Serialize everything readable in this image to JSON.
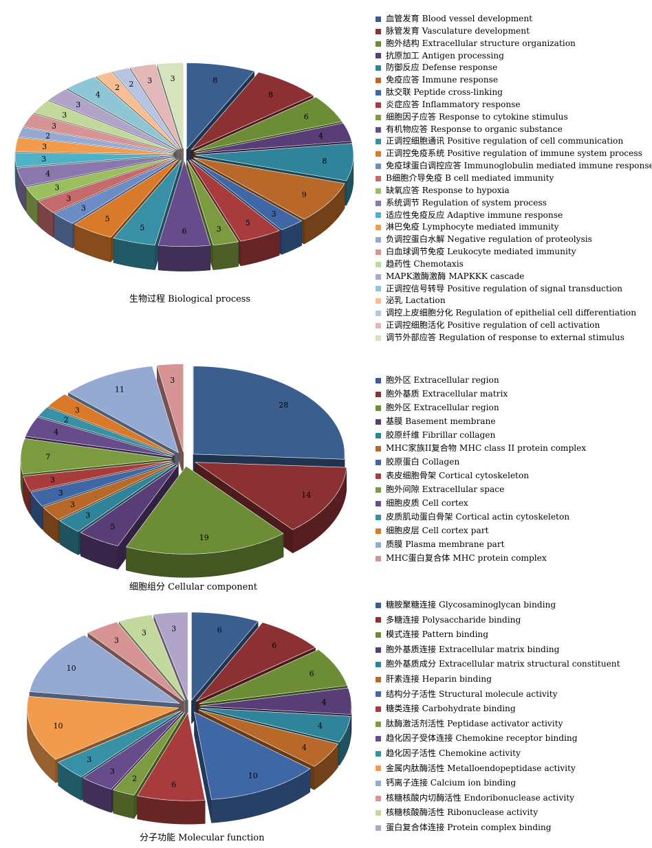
{
  "chart_data": [
    {
      "type": "pie",
      "title": "生物过程 Biological process",
      "categories": [
        "血管发育 Blood vessel development",
        "脉管发育 Vasculature development",
        "胞外结构 Extracellular structure organization",
        "抗原加工 Antigen processing",
        "防御反应 Defense response",
        "免疫应答 Immune response",
        "肽交联 Peptide cross-linking",
        "炎症应答 Inflammatory response",
        "细胞因子应答 Response to cytokine stimulus",
        "有机物应答 Response to organic substance",
        "正调控细胞通讯 Positive regulation of cell communication",
        "正调控免疫系统 Positive regulation of immune system process",
        "免疫球蛋白调控应答 Immunoglobulin mediated immune response",
        "B细胞介导免疫 B cell mediated immunity",
        "缺氧应答 Response to hypoxia",
        "系统调节 Regulation of system process",
        "适应性免疫反应 Adaptive immune response",
        "淋巴免疫 Lymphocyte mediated immunity",
        "负调控蛋白水解 Negative regulation of proteolysis",
        "白血球调节免疫 Leukocyte mediated immunity",
        "趋药性 Chemotaxis",
        "MAPK激酶激酶 MAPKKK cascade",
        "正调控信号转导 Positive regulation of signal transduction",
        "泌乳 Lactation",
        "调控上皮细胞分化 Regulation of epithelial cell differentiation",
        "正调控细胞活化 Positive regulation of cell activation",
        "调节外部应答 Regulation of response to external stimulus"
      ],
      "values": [
        8,
        8,
        6,
        4,
        8,
        9,
        3,
        5,
        3,
        6,
        5,
        5,
        3,
        3,
        3,
        4,
        3,
        3,
        2,
        3,
        3,
        3,
        4,
        2,
        2,
        3,
        3
      ],
      "colors": [
        "#3a5f8f",
        "#8b3133",
        "#6c8c35",
        "#593d76",
        "#30849a",
        "#b8692a",
        "#3f67a5",
        "#a83c3c",
        "#7c9a3f",
        "#674c8c",
        "#3790a5",
        "#d97a2b",
        "#6b8cc4",
        "#c46a6a",
        "#9bbf5d",
        "#8a78ad",
        "#4fb1c6",
        "#f29b4d",
        "#95aad3",
        "#d79494",
        "#c2d89d",
        "#b1a4c9",
        "#8fc6d6",
        "#f7be93",
        "#b8c5e2",
        "#e3b8b8",
        "#d6e4be"
      ]
    },
    {
      "type": "pie",
      "title": "细胞组分 Cellular component",
      "categories": [
        "胞外区 Extracellular region",
        "胞外基质 Extracellular matrix",
        "胞外区 Extracellular region",
        "基膜 Basement membrane",
        "胶原纤维 Fibrillar collagen",
        "MHC家族II复合物 MHC class II protein complex",
        "胶原蛋白 Collagen",
        "表皮细胞骨架 Cortical cytoskeleton",
        "胞外间隙 Extracellular space",
        "细胞皮质 Cell cortex",
        "皮质肌动蛋白骨架 Cortical actin cytoskeleton",
        "细胞皮层 Cell cortex part",
        "质膜 Plasma membrane part",
        "MHC蛋白复合体 MHC protein complex"
      ],
      "values": [
        28,
        14,
        19,
        5,
        3,
        3,
        3,
        3,
        7,
        4,
        2,
        3,
        11,
        3
      ],
      "colors": [
        "#3a5f8f",
        "#8b3133",
        "#6c8c35",
        "#593d76",
        "#30849a",
        "#b8692a",
        "#3f67a5",
        "#a83c3c",
        "#7c9a3f",
        "#674c8c",
        "#3790a5",
        "#d97a2b",
        "#95aad3",
        "#d79494"
      ]
    },
    {
      "type": "pie",
      "title": "分子功能 Molecular function",
      "categories": [
        "糖胺聚糖连接 Glycosaminoglycan binding",
        "多糖连接 Polysaccharide binding",
        "模式连接 Pattern binding",
        "胞外基质连接 Extracellular matrix binding",
        "胞外基质成分 Extracellular matrix structural constituent",
        "肝素连接 Heparin binding",
        "结构分子活性 Structural molecule activity",
        "糖类连接 Carbohydrate binding",
        "肽酶激活剂活性 Peptidase activator activity",
        "趋化因子受体连接 Chemokine receptor binding",
        "趋化因子活性 Chemokine activity",
        "金属内肽酶活性 Metalloendopeptidase activity",
        "钙离子连接 Calcium ion binding",
        "核糖核酸内切酶活性 Endoribonuclease activity",
        "核糖核酸酶活性 Ribonuclease activity",
        "蛋白复合体连接 Protein complex binding"
      ],
      "values": [
        6,
        6,
        6,
        4,
        4,
        4,
        10,
        6,
        2,
        3,
        3,
        10,
        10,
        3,
        3,
        3
      ],
      "colors": [
        "#3a5f8f",
        "#8b3133",
        "#6c8c35",
        "#593d76",
        "#30849a",
        "#b8692a",
        "#3f67a5",
        "#a83c3c",
        "#7c9a3f",
        "#674c8c",
        "#3790a5",
        "#f29b4d",
        "#95aad3",
        "#d79494",
        "#c2d89d",
        "#b1a4c9"
      ]
    }
  ]
}
